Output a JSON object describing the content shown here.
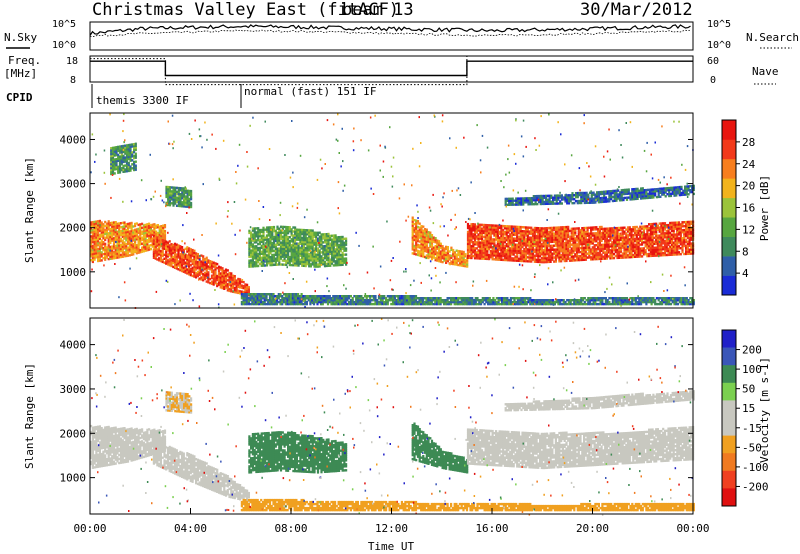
{
  "header": {
    "station_title": "Christmas Valley East (fitACF)",
    "beam_label": "beam 13",
    "date": "30/Mar/2012"
  },
  "noise_panel": {
    "left_label": "N.Sky",
    "right_label": "N.Search",
    "left_ticks": [
      "10^5",
      "10^0"
    ],
    "right_ticks": [
      "10^5",
      "10^0"
    ]
  },
  "freq_panel": {
    "left_label_1": "Freq.",
    "left_label_2": "[MHz]",
    "right_label": "Nave",
    "left_ticks": [
      "18",
      "8"
    ],
    "right_ticks": [
      "60",
      "0"
    ]
  },
  "cpid": {
    "label": "CPID",
    "modes": [
      {
        "name": "themis 3300 IF",
        "start_hour": 0
      },
      {
        "name": "normal (fast) 151 IF",
        "start_hour": 6
      }
    ]
  },
  "x_axis": {
    "label": "Time UT",
    "ticks": [
      "00:00",
      "04:00",
      "08:00",
      "12:00",
      "16:00",
      "20:00",
      "00:00"
    ]
  },
  "colors": {
    "power_scale": [
      "#1a2cd6",
      "#2f5fa8",
      "#3f8a5c",
      "#57a640",
      "#9bc33a",
      "#f2b31c",
      "#f77e1e",
      "#f2391a",
      "#e8150f"
    ],
    "velocity_scale": [
      "#2020c8",
      "#3a56b8",
      "#3d8a54",
      "#7bd050",
      "#c8c8c0",
      "#c8c8c0",
      "#f0a020",
      "#f07a20",
      "#f04020",
      "#e01010"
    ]
  },
  "chart_data": [
    {
      "type": "line",
      "panel": "noise",
      "series": [
        {
          "name": "N.Sky",
          "x": [
            0,
            2,
            4,
            6,
            8,
            10,
            12,
            14,
            16,
            18,
            20,
            22,
            24
          ],
          "y": [
            3,
            4,
            4.3,
            4.5,
            4.4,
            4.2,
            4.0,
            3.8,
            3.6,
            3.8,
            4.0,
            4.3,
            4.5
          ]
        },
        {
          "name": "N.Search",
          "x": [
            0,
            2,
            4,
            6,
            8,
            10,
            12,
            14,
            16,
            18,
            20,
            22,
            24
          ],
          "y": [
            2.5,
            3,
            3.3,
            3.6,
            3.5,
            3.3,
            3.0,
            2.8,
            2.6,
            2.8,
            3.0,
            3.3,
            3.6
          ]
        }
      ],
      "xlabel": "",
      "ylabel": "N.Sky",
      "xlim": [
        0,
        24
      ]
    },
    {
      "type": "line",
      "panel": "frequency",
      "series": [
        {
          "name": "Freq.",
          "x": [
            0,
            3,
            3,
            15,
            15,
            24
          ],
          "y": [
            16,
            16,
            10.5,
            10.5,
            16,
            16
          ]
        },
        {
          "name": "Nave",
          "x": [
            0,
            3,
            3,
            15,
            15,
            24
          ],
          "y": [
            17,
            17,
            7,
            7,
            18,
            18
          ]
        }
      ],
      "ylabel": "Freq. [MHz]",
      "xlim": [
        0,
        24
      ],
      "ylim": [
        8,
        18
      ],
      "y2lim": [
        0,
        60
      ]
    },
    {
      "type": "heatmap",
      "panel": "power",
      "title": "Power [dB]",
      "xlabel": "Time UT",
      "ylabel": "Slant Range [km]",
      "xlim": [
        0,
        24
      ],
      "ylim": [
        180,
        4600
      ],
      "yticks": [
        1000,
        2000,
        3000,
        4000
      ],
      "colorbar": {
        "label": "Power [dB]",
        "ticks": [
          4,
          8,
          12,
          16,
          20,
          24,
          28
        ],
        "range": [
          0,
          32
        ]
      },
      "bands": [
        {
          "x": [
            0,
            1.5,
            3.0
          ],
          "y_low": [
            1200,
            1350,
            1600
          ],
          "y_high": [
            2150,
            2100,
            2050
          ],
          "value": 22
        },
        {
          "x": [
            2.5,
            4.0,
            5.5,
            6.3
          ],
          "y_low": [
            1300,
            900,
            550,
            450
          ],
          "y_high": [
            1800,
            1500,
            1000,
            650
          ],
          "value": 26
        },
        {
          "x": [
            6.3,
            7.5,
            9.0,
            10.2
          ],
          "y_low": [
            1100,
            1150,
            1100,
            1150
          ],
          "y_high": [
            1950,
            2050,
            1900,
            1750
          ],
          "value": 12
        },
        {
          "x": [
            12.8,
            14.0,
            15.0
          ],
          "y_low": [
            1400,
            1200,
            1100
          ],
          "y_high": [
            2250,
            1600,
            1400
          ],
          "value": 22
        },
        {
          "x": [
            15.0,
            18.0,
            21.0,
            24.0
          ],
          "y_low": [
            1300,
            1200,
            1300,
            1400
          ],
          "y_high": [
            2100,
            2000,
            2000,
            2150
          ],
          "value": 26
        },
        {
          "x": [
            16.5,
            20.0,
            24.0
          ],
          "y_low": [
            2500,
            2550,
            2750
          ],
          "y_high": [
            2650,
            2800,
            2950
          ],
          "value": 6
        },
        {
          "x": [
            3.0,
            4.0
          ],
          "y_low": [
            2500,
            2450
          ],
          "y_high": [
            2950,
            2850
          ],
          "value": 10
        },
        {
          "x": [
            0.8,
            1.8
          ],
          "y_low": [
            3200,
            3300
          ],
          "y_high": [
            3800,
            3900
          ],
          "value": 10
        },
        {
          "x": [
            6.0,
            18.0,
            24.0
          ],
          "y_low": [
            250,
            250,
            250
          ],
          "y_high": [
            500,
            380,
            400
          ],
          "value": 8
        }
      ]
    },
    {
      "type": "heatmap",
      "panel": "velocity",
      "title": "Velocity [m s-1]",
      "xlabel": "Time UT",
      "ylabel": "Slant Range [km]",
      "xlim": [
        0,
        24
      ],
      "ylim": [
        180,
        4600
      ],
      "yticks": [
        1000,
        2000,
        3000,
        4000
      ],
      "colorbar": {
        "label": "Velocity [m s-1]",
        "ticks": [
          200,
          100,
          50,
          15,
          -15,
          -50,
          -100,
          -200
        ]
      },
      "bands": [
        {
          "x": [
            0,
            1.5,
            3.0
          ],
          "y_low": [
            1200,
            1350,
            1600
          ],
          "y_high": [
            2150,
            2100,
            2050
          ],
          "value": 0
        },
        {
          "x": [
            2.5,
            4.0,
            5.5,
            6.3
          ],
          "y_low": [
            1300,
            900,
            550,
            450
          ],
          "y_high": [
            1800,
            1500,
            1000,
            650
          ],
          "value": 0
        },
        {
          "x": [
            6.3,
            7.5,
            9.0,
            10.2
          ],
          "y_low": [
            1100,
            1150,
            1100,
            1150
          ],
          "y_high": [
            1950,
            2050,
            1900,
            1750
          ],
          "value": 70
        },
        {
          "x": [
            12.8,
            14.0,
            15.0
          ],
          "y_low": [
            1400,
            1200,
            1100
          ],
          "y_high": [
            2250,
            1600,
            1400
          ],
          "value": 60
        },
        {
          "x": [
            15.0,
            18.0,
            21.0,
            24.0
          ],
          "y_low": [
            1300,
            1200,
            1300,
            1400
          ],
          "y_high": [
            2100,
            2000,
            2000,
            2150
          ],
          "value": 0
        },
        {
          "x": [
            16.5,
            20.0,
            24.0
          ],
          "y_low": [
            2500,
            2550,
            2750
          ],
          "y_high": [
            2650,
            2800,
            2950
          ],
          "value": 0
        },
        {
          "x": [
            3.0,
            4.0
          ],
          "y_low": [
            2500,
            2450
          ],
          "y_high": [
            2950,
            2850
          ],
          "value": -50
        },
        {
          "x": [
            6.0,
            18.0,
            24.0
          ],
          "y_low": [
            250,
            250,
            250
          ],
          "y_high": [
            500,
            380,
            400
          ],
          "value": -70
        }
      ]
    }
  ]
}
